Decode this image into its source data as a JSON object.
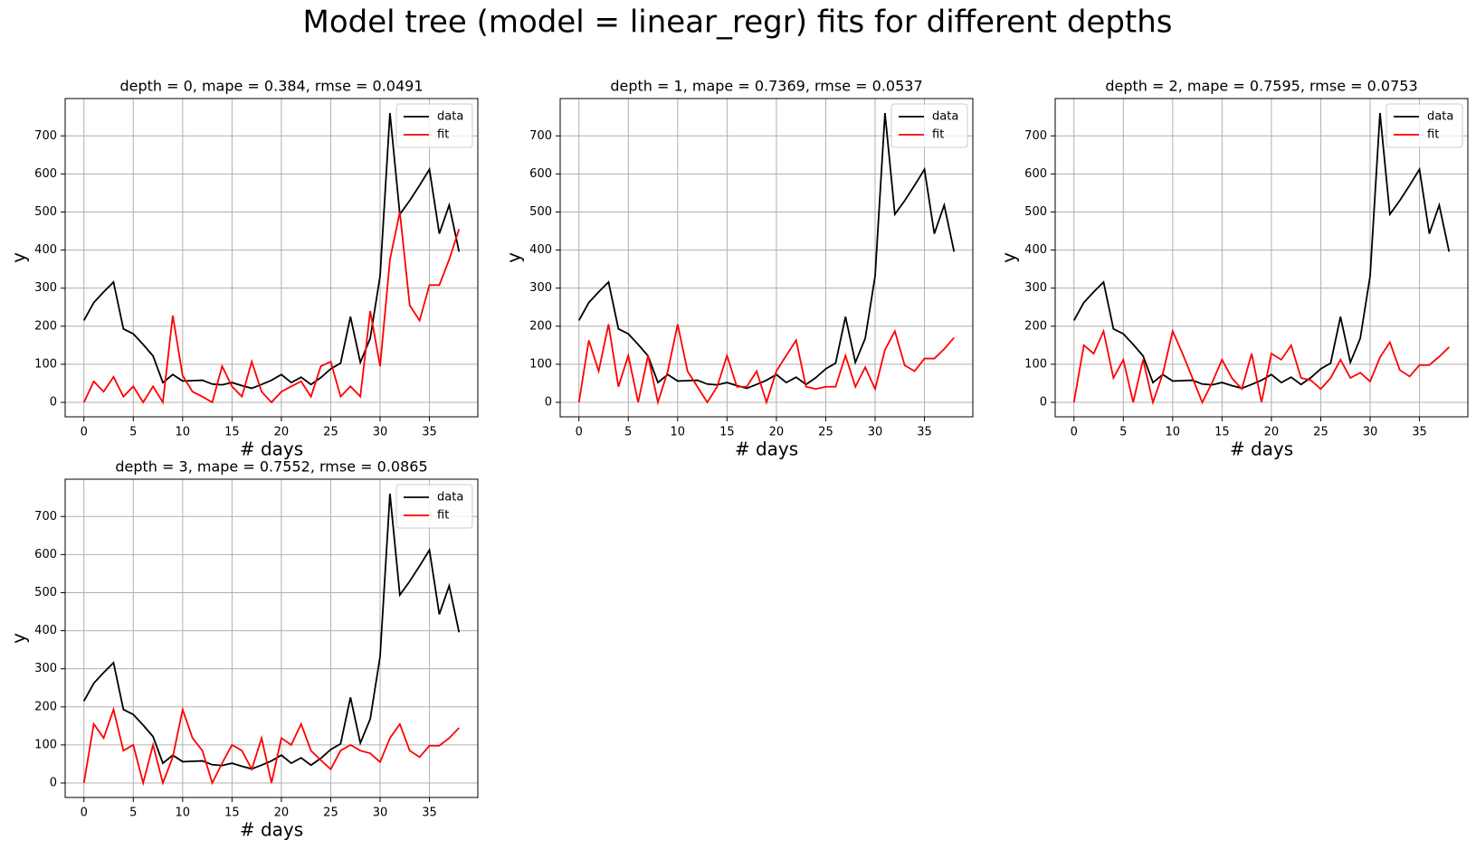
{
  "title": "Model tree (model = linear_regr) fits for different depths",
  "chart_data": [
    {
      "type": "line",
      "title": "depth = 0, mape = 0.384, rmse = 0.0491",
      "x_label": "# days",
      "y_label": "y",
      "x": [
        0,
        1,
        2,
        3,
        4,
        5,
        6,
        7,
        8,
        9,
        10,
        11,
        12,
        13,
        14,
        15,
        16,
        17,
        18,
        19,
        20,
        21,
        22,
        23,
        24,
        25,
        26,
        27,
        28,
        29,
        30,
        31,
        32,
        33,
        34,
        35,
        36,
        37,
        38
      ],
      "series": [
        {
          "name": "data",
          "color": "#000000",
          "values": [
            215,
            262,
            290,
            316,
            193,
            180,
            152,
            122,
            52,
            73,
            56,
            57,
            58,
            48,
            46,
            52,
            44,
            37,
            47,
            58,
            73,
            52,
            66,
            47,
            65,
            88,
            103,
            225,
            105,
            168,
            332,
            760,
            494,
            530,
            570,
            612,
            443,
            518,
            396
          ]
        },
        {
          "name": "fit",
          "color": "#ff0000",
          "values": [
            0,
            55,
            28,
            67,
            15,
            42,
            0,
            42,
            0,
            228,
            70,
            28,
            15,
            0,
            95,
            42,
            15,
            107,
            28,
            0,
            28,
            42,
            55,
            15,
            95,
            107,
            15,
            42,
            15,
            240,
            95,
            375,
            500,
            255,
            215,
            308,
            308,
            375,
            455
          ]
        }
      ],
      "xlim": [
        -1.9,
        39.9
      ],
      "ylim": [
        -38,
        798
      ],
      "xticks": [
        0,
        5,
        10,
        15,
        20,
        25,
        30,
        35
      ],
      "yticks": [
        0,
        100,
        200,
        300,
        400,
        500,
        600,
        700
      ],
      "grid": true,
      "legend": "upper right"
    },
    {
      "type": "line",
      "title": "depth = 1, mape = 0.7369, rmse = 0.0537",
      "x_label": "# days",
      "y_label": "y",
      "x": [
        0,
        1,
        2,
        3,
        4,
        5,
        6,
        7,
        8,
        9,
        10,
        11,
        12,
        13,
        14,
        15,
        16,
        17,
        18,
        19,
        20,
        21,
        22,
        23,
        24,
        25,
        26,
        27,
        28,
        29,
        30,
        31,
        32,
        33,
        34,
        35,
        36,
        37,
        38
      ],
      "series": [
        {
          "name": "data",
          "color": "#000000",
          "values": [
            215,
            262,
            290,
            316,
            193,
            180,
            152,
            122,
            52,
            73,
            56,
            57,
            58,
            48,
            46,
            52,
            44,
            37,
            47,
            58,
            73,
            52,
            66,
            47,
            65,
            88,
            103,
            225,
            105,
            168,
            332,
            760,
            494,
            530,
            570,
            612,
            443,
            518,
            396
          ]
        },
        {
          "name": "fit",
          "color": "#ff0000",
          "values": [
            0,
            163,
            82,
            205,
            41,
            123,
            0,
            123,
            0,
            82,
            205,
            82,
            41,
            0,
            41,
            123,
            41,
            41,
            82,
            0,
            82,
            123,
            163,
            41,
            35,
            41,
            41,
            123,
            41,
            92,
            35,
            138,
            187,
            97,
            82,
            115,
            115,
            140,
            170
          ]
        }
      ],
      "xlim": [
        -1.9,
        39.9
      ],
      "ylim": [
        -38,
        798
      ],
      "xticks": [
        0,
        5,
        10,
        15,
        20,
        25,
        30,
        35
      ],
      "yticks": [
        0,
        100,
        200,
        300,
        400,
        500,
        600,
        700
      ],
      "grid": true,
      "legend": "upper right"
    },
    {
      "type": "line",
      "title": "depth = 2, mape = 0.7595, rmse = 0.0753",
      "x_label": "# days",
      "y_label": "y",
      "x": [
        0,
        1,
        2,
        3,
        4,
        5,
        6,
        7,
        8,
        9,
        10,
        11,
        12,
        13,
        14,
        15,
        16,
        17,
        18,
        19,
        20,
        21,
        22,
        23,
        24,
        25,
        26,
        27,
        28,
        29,
        30,
        31,
        32,
        33,
        34,
        35,
        36,
        37,
        38
      ],
      "series": [
        {
          "name": "data",
          "color": "#000000",
          "values": [
            215,
            262,
            290,
            316,
            193,
            180,
            152,
            122,
            52,
            73,
            56,
            57,
            58,
            48,
            46,
            52,
            44,
            37,
            47,
            58,
            73,
            52,
            66,
            47,
            65,
            88,
            103,
            225,
            105,
            168,
            332,
            760,
            494,
            530,
            570,
            612,
            443,
            518,
            396
          ]
        },
        {
          "name": "fit",
          "color": "#ff0000",
          "values": [
            0,
            150,
            128,
            187,
            64,
            112,
            0,
            112,
            0,
            75,
            187,
            128,
            64,
            0,
            52,
            112,
            64,
            35,
            128,
            0,
            128,
            112,
            150,
            64,
            58,
            35,
            64,
            112,
            64,
            78,
            55,
            118,
            158,
            85,
            68,
            98,
            98,
            120,
            145
          ]
        }
      ],
      "xlim": [
        -1.9,
        39.9
      ],
      "ylim": [
        -38,
        798
      ],
      "xticks": [
        0,
        5,
        10,
        15,
        20,
        25,
        30,
        35
      ],
      "yticks": [
        0,
        100,
        200,
        300,
        400,
        500,
        600,
        700
      ],
      "grid": true,
      "legend": "upper right"
    },
    {
      "type": "line",
      "title": "depth = 3, mape = 0.7552, rmse = 0.0865",
      "x_label": "# days",
      "y_label": "y",
      "x": [
        0,
        1,
        2,
        3,
        4,
        5,
        6,
        7,
        8,
        9,
        10,
        11,
        12,
        13,
        14,
        15,
        16,
        17,
        18,
        19,
        20,
        21,
        22,
        23,
        24,
        25,
        26,
        27,
        28,
        29,
        30,
        31,
        32,
        33,
        34,
        35,
        36,
        37,
        38
      ],
      "series": [
        {
          "name": "data",
          "color": "#000000",
          "values": [
            215,
            262,
            290,
            316,
            193,
            180,
            152,
            122,
            52,
            73,
            56,
            57,
            58,
            48,
            46,
            52,
            44,
            37,
            47,
            58,
            73,
            52,
            66,
            47,
            65,
            88,
            103,
            225,
            105,
            168,
            332,
            760,
            494,
            530,
            570,
            612,
            443,
            518,
            396
          ]
        },
        {
          "name": "fit",
          "color": "#ff0000",
          "values": [
            0,
            155,
            118,
            193,
            85,
            100,
            0,
            100,
            0,
            68,
            193,
            118,
            85,
            0,
            52,
            100,
            85,
            36,
            118,
            0,
            118,
            100,
            155,
            85,
            60,
            36,
            85,
            100,
            85,
            78,
            55,
            118,
            155,
            85,
            68,
            98,
            98,
            118,
            145
          ]
        }
      ],
      "xlim": [
        -1.9,
        39.9
      ],
      "ylim": [
        -38,
        798
      ],
      "xticks": [
        0,
        5,
        10,
        15,
        20,
        25,
        30,
        35
      ],
      "yticks": [
        0,
        100,
        200,
        300,
        400,
        500,
        600,
        700
      ],
      "grid": true,
      "legend": "upper right"
    }
  ]
}
